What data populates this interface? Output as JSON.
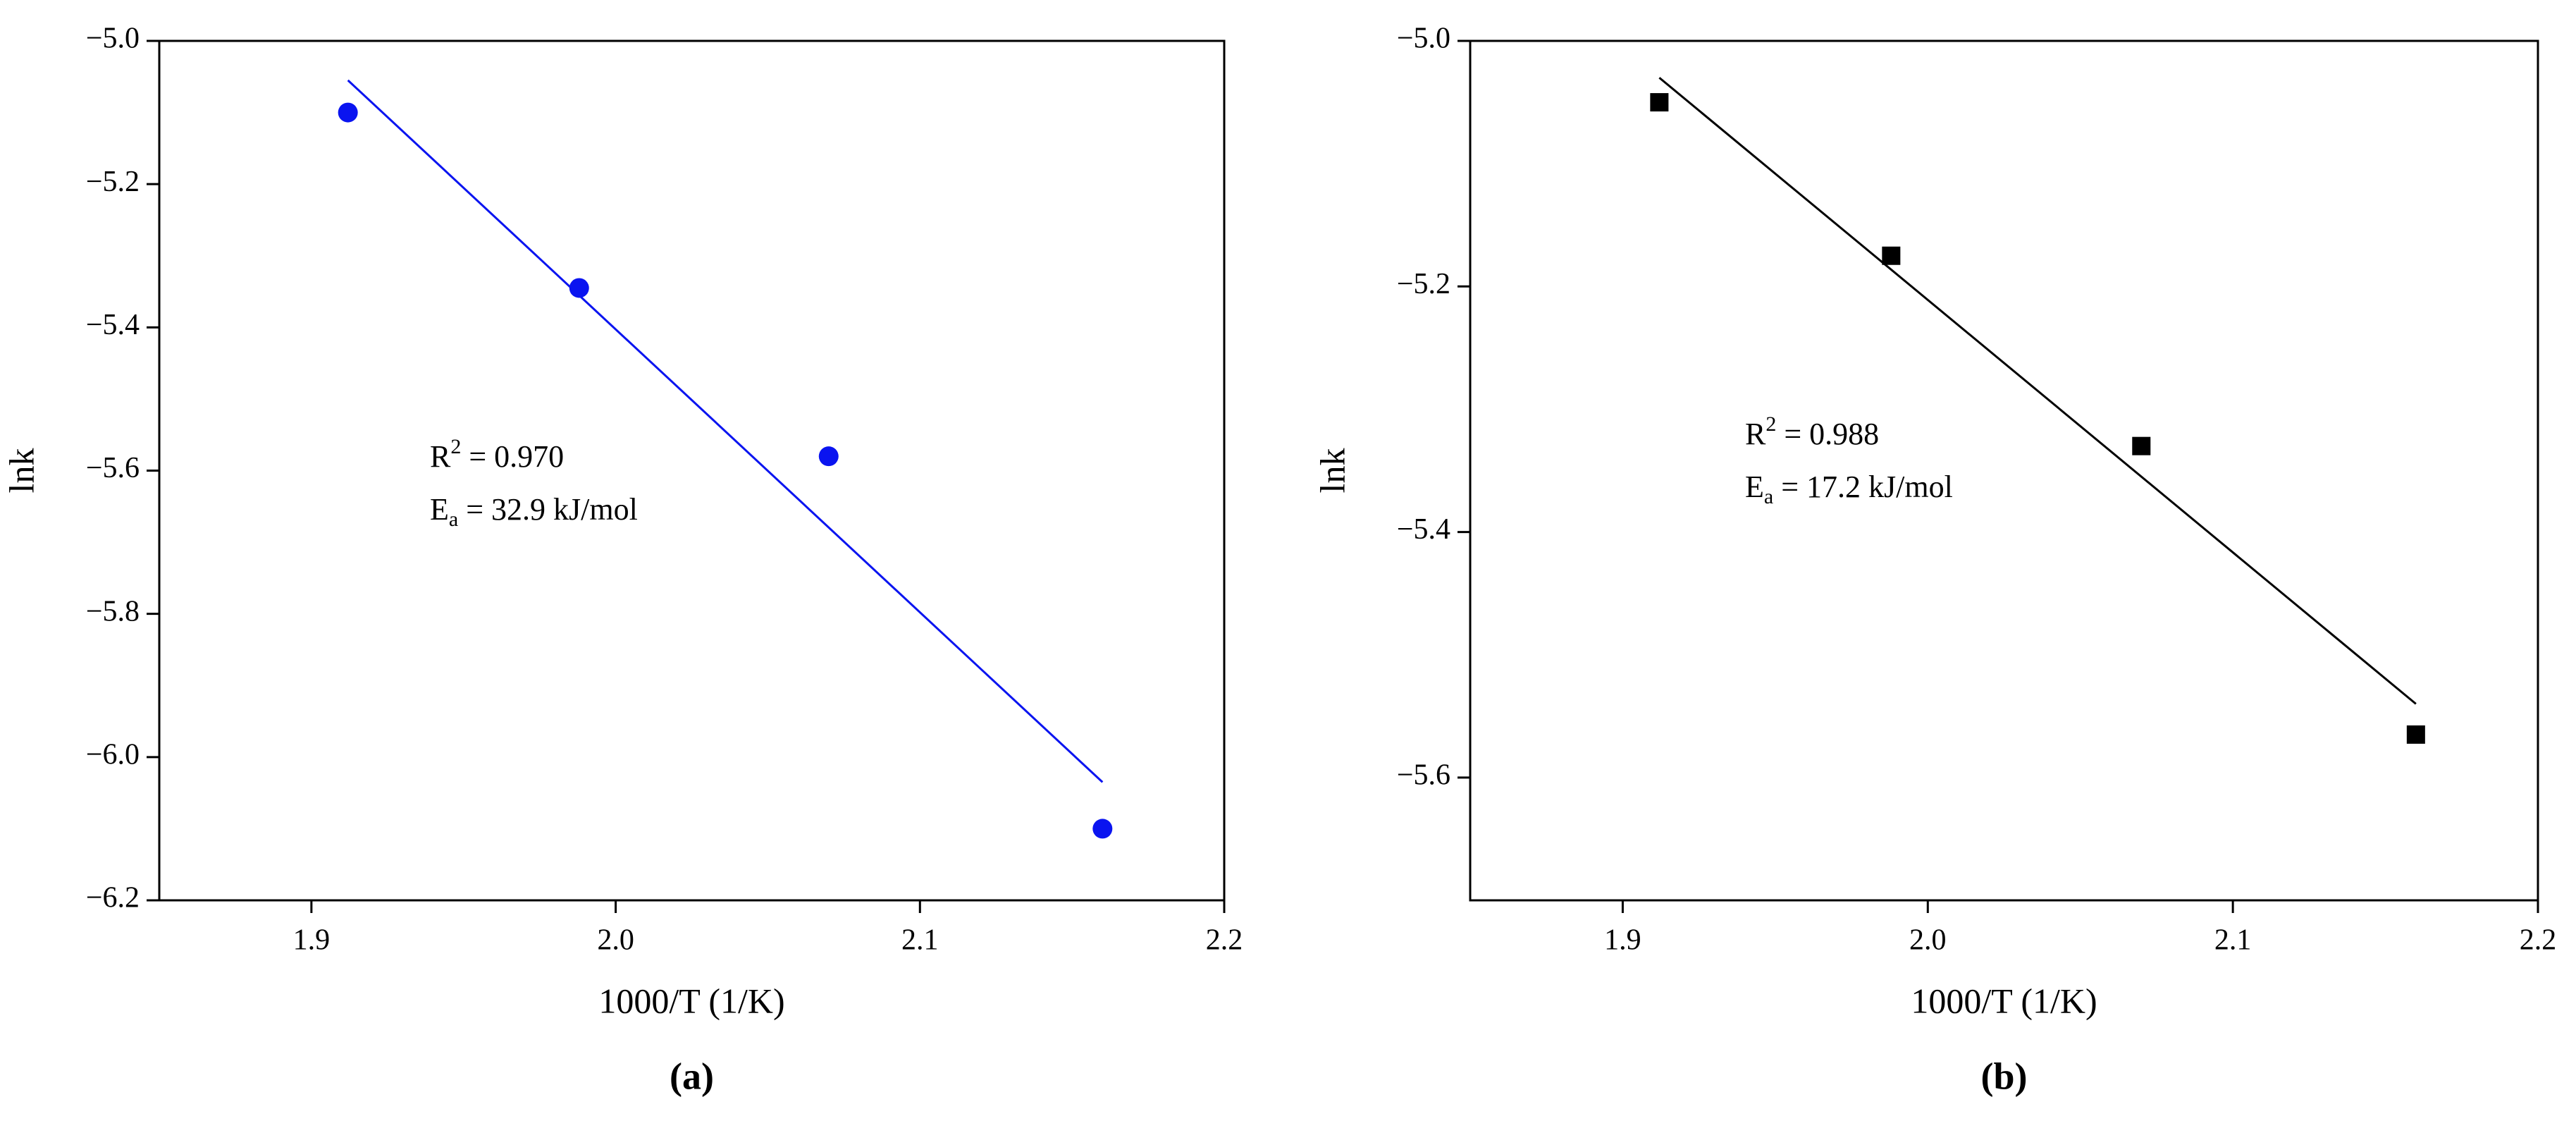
{
  "chart_data": [
    {
      "type": "scatter",
      "panel_label": "(a)",
      "x_label": "1000/T (1/K)",
      "y_label": "lnk",
      "xlim": [
        1.85,
        2.2
      ],
      "xticks": [
        {
          "value": 1.9,
          "label": "1.9"
        },
        {
          "value": 2,
          "label": "2.0"
        },
        {
          "value": 2.1,
          "label": "2.1"
        },
        {
          "value": 2.2,
          "label": "2.2"
        }
      ],
      "ylim": [
        -6.2,
        -5.0
      ],
      "yticks": [
        {
          "value": -5.0,
          "label": "−5.0"
        },
        {
          "value": -5.2,
          "label": "−5.2"
        },
        {
          "value": -5.4,
          "label": "−5.4"
        },
        {
          "value": -5.6,
          "label": "−5.6"
        },
        {
          "value": -5.8,
          "label": "−5.8"
        },
        {
          "value": -6.0,
          "label": "−6.0"
        },
        {
          "value": -6.2,
          "label": "−6.2"
        }
      ],
      "marker": "circle",
      "color": "#0a14f0",
      "x": [
        1.912,
        1.988,
        2.07,
        2.16
      ],
      "values": [
        -5.1,
        -5.345,
        -5.58,
        -6.1
      ],
      "fit": {
        "x": [
          1.912,
          2.16
        ],
        "values": [
          -5.055,
          -6.035
        ]
      },
      "annotations": [
        {
          "base": "R",
          "sup": "2",
          "tail": " = 0.970"
        },
        {
          "base": "E",
          "sub": "a",
          "tail": " = 32.9 kJ/mol"
        }
      ]
    },
    {
      "type": "scatter",
      "panel_label": "(b)",
      "x_label": "1000/T (1/K)",
      "y_label": "lnk",
      "xlim": [
        1.85,
        2.2
      ],
      "xticks": [
        {
          "value": 1.9,
          "label": "1.9"
        },
        {
          "value": 2,
          "label": "2.0"
        },
        {
          "value": 2.1,
          "label": "2.1"
        },
        {
          "value": 2.2,
          "label": "2.2"
        }
      ],
      "ylim": [
        -5.7,
        -5.0
      ],
      "yticks": [
        {
          "value": -5.0,
          "label": "−5.0"
        },
        {
          "value": -5.2,
          "label": "−5.2"
        },
        {
          "value": -5.4,
          "label": "−5.4"
        },
        {
          "value": -5.6,
          "label": "−5.6"
        }
      ],
      "marker": "square",
      "color": "#000000",
      "x": [
        1.912,
        1.988,
        2.07,
        2.16
      ],
      "values": [
        -5.05,
        -5.175,
        -5.33,
        -5.565
      ],
      "fit": {
        "x": [
          1.912,
          2.16
        ],
        "values": [
          -5.03,
          -5.54
        ]
      },
      "annotations": [
        {
          "base": "R",
          "sup": "2",
          "tail": " = 0.988"
        },
        {
          "base": "E",
          "sub": "a",
          "tail": " = 17.2 kJ/mol"
        }
      ]
    }
  ]
}
